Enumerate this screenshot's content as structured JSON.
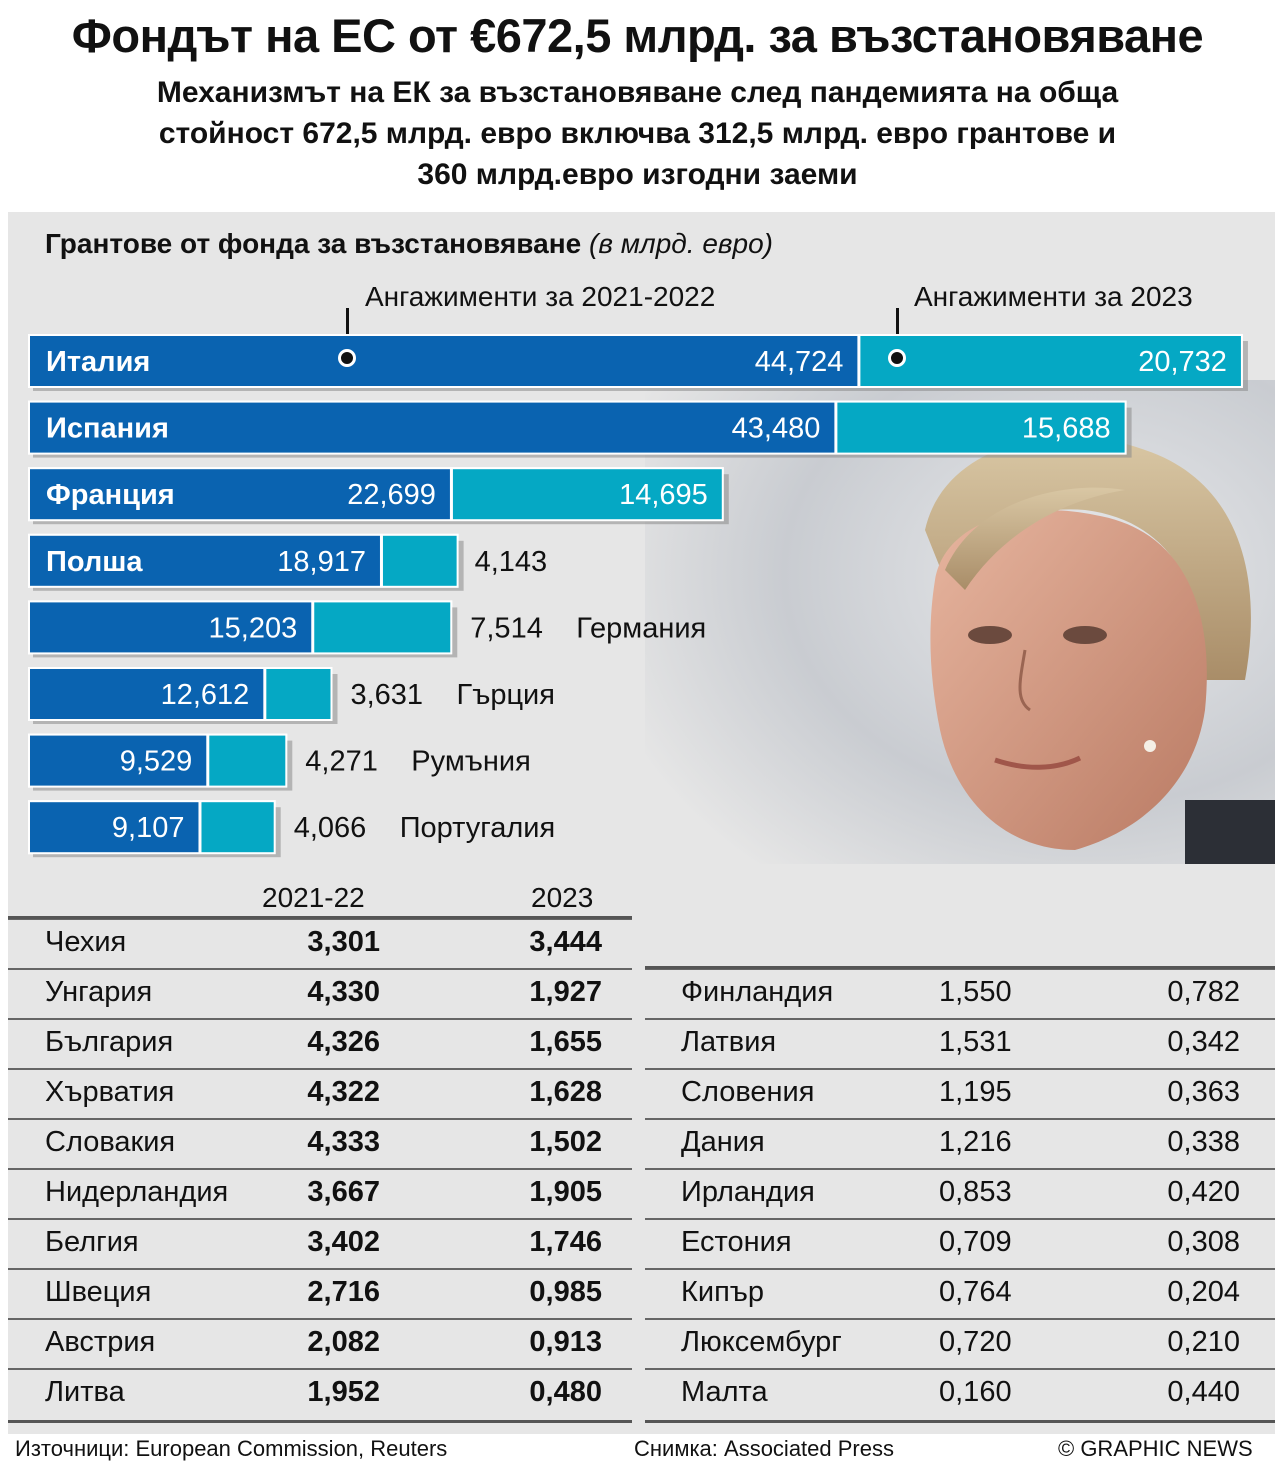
{
  "header": {
    "title": "Фондът на ЕС от €672,5 млрд. за възстановяване",
    "subtitle_lines": [
      "Механизмът на ЕК за възстановяване след пандемията на обща",
      "стойност 672,5 млрд. евро включва 312,5 млрд. евро грантове и",
      "360 млрд.евро изгодни заеми"
    ]
  },
  "chart_data": {
    "type": "bar",
    "orientation": "horizontal",
    "stacked": true,
    "title": "Грантове от фонда за възстановяване",
    "unit": "(в млрд. евро)",
    "series": [
      {
        "name": "Ангажименти за 2021-2022",
        "color": "#0a63b0"
      },
      {
        "name": "Ангажименти за 2023",
        "color": "#05a8c4"
      }
    ],
    "rows": [
      {
        "country": "Италия",
        "v1": 44.724,
        "v2": 20.732,
        "l1": "44,724",
        "l2": "20,732",
        "label_pos": "inside"
      },
      {
        "country": "Испания",
        "v1": 43.48,
        "v2": 15.688,
        "l1": "43,480",
        "l2": "15,688",
        "label_pos": "inside"
      },
      {
        "country": "Франция",
        "v1": 22.699,
        "v2": 14.695,
        "l1": "22,699",
        "l2": "14,695",
        "label_pos": "inside"
      },
      {
        "country": "Полша",
        "v1": 18.917,
        "v2": 4.143,
        "l1": "18,917",
        "l2": "4,143",
        "label_pos": "inside"
      },
      {
        "country": "Германия",
        "v1": 15.203,
        "v2": 7.514,
        "l1": "15,203",
        "l2": "7,514",
        "label_pos": "outside"
      },
      {
        "country": "Гърция",
        "v1": 12.612,
        "v2": 3.631,
        "l1": "12,612",
        "l2": "3,631",
        "label_pos": "outside"
      },
      {
        "country": "Румъния",
        "v1": 9.529,
        "v2": 4.271,
        "l1": "9,529",
        "l2": "4,271",
        "label_pos": "outside"
      },
      {
        "country": "Португалия",
        "v1": 9.107,
        "v2": 4.066,
        "l1": "9,107",
        "l2": "4,066",
        "label_pos": "outside"
      }
    ]
  },
  "tables": {
    "columns": {
      "c1": "2021-22",
      "c2": "2023"
    },
    "left": [
      {
        "name": "Чехия",
        "v1": "3,301",
        "v2": "3,444"
      },
      {
        "name": "Унгария",
        "v1": "4,330",
        "v2": "1,927"
      },
      {
        "name": "България",
        "v1": "4,326",
        "v2": "1,655"
      },
      {
        "name": "Хърватия",
        "v1": "4,322",
        "v2": "1,628"
      },
      {
        "name": "Словакия",
        "v1": "4,333",
        "v2": "1,502"
      },
      {
        "name": "Нидерландия",
        "v1": "3,667",
        "v2": "1,905"
      },
      {
        "name": "Белгия",
        "v1": "3,402",
        "v2": "1,746"
      },
      {
        "name": "Швеция",
        "v1": "2,716",
        "v2": "0,985"
      },
      {
        "name": "Австрия",
        "v1": "2,082",
        "v2": "0,913"
      },
      {
        "name": "Литва",
        "v1": "1,952",
        "v2": "0,480"
      }
    ],
    "right": [
      {
        "name": "Финландия",
        "v1": "1,550",
        "v2": "0,782"
      },
      {
        "name": "Латвия",
        "v1": "1,531",
        "v2": "0,342"
      },
      {
        "name": "Словения",
        "v1": "1,195",
        "v2": "0,363"
      },
      {
        "name": "Дания",
        "v1": "1,216",
        "v2": "0,338"
      },
      {
        "name": "Ирландия",
        "v1": "0,853",
        "v2": "0,420"
      },
      {
        "name": "Естония",
        "v1": "0,709",
        "v2": "0,308"
      },
      {
        "name": "Кипър",
        "v1": "0,764",
        "v2": "0,204"
      },
      {
        "name": "Люксембург",
        "v1": "0,720",
        "v2": "0,210"
      },
      {
        "name": "Малта",
        "v1": "0,160",
        "v2": "0,440"
      }
    ]
  },
  "footer": {
    "sources": "Източници: European Commission, Reuters",
    "photo": "Снимка: Associated Press",
    "credit": "© GRAPHIC NEWS"
  },
  "colors": {
    "dark_blue": "#0a63b0",
    "teal": "#05a8c4",
    "panel": "#e6e6e6"
  },
  "photo_icon": "portrait-photo"
}
